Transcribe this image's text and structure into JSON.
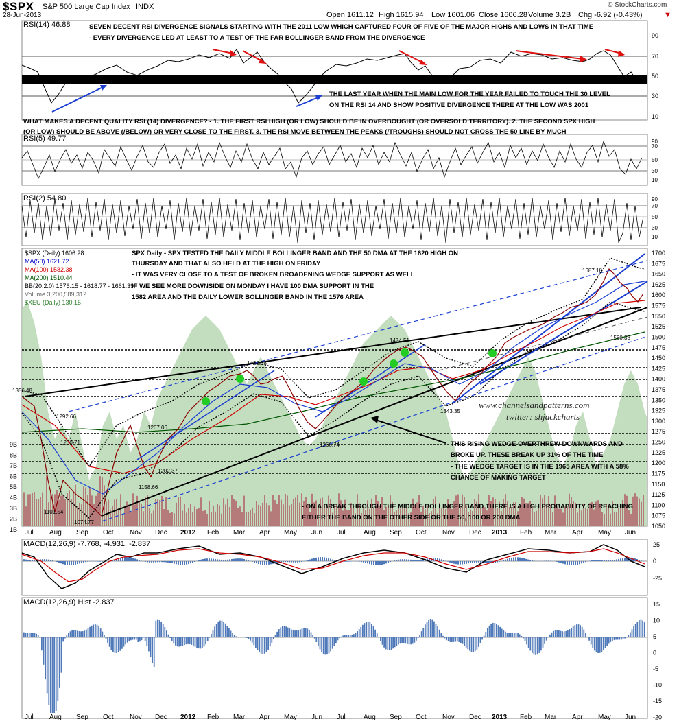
{
  "header": {
    "symbol": "$SPX",
    "name": "S&P 500 Large Cap Index",
    "exchange": "INDX",
    "date": "28-Jun-2013",
    "open": "Open 1611.12",
    "high": "High 1615.94",
    "low": "Low 1601.06",
    "close": "Close 1606.28",
    "volume": "Volume 3.2B",
    "change": "Chg -6.92 (-0.43%)",
    "change_arrow": "▼",
    "stockcharts": "© StockCharts.com",
    "colors": {
      "down": "#cc0000",
      "up": "#006600"
    }
  },
  "rsi14": {
    "label": "RSI(14) 46.88",
    "ticks": [
      "90",
      "70",
      "50",
      "30",
      "10"
    ],
    "annotation1": "SEVEN DECENT RSI DIVERGENCE SIGNALS STARTING WITH THE 2011 LOW WHICH CAPTURED FOUR OF FIVE OF THE MAJOR HIGHS AND LOWS IN THAT TIME",
    "annotation2": "- EVERY DIVERGENCE LED AT LEAST TO A TEST OF THE FAR BOLLINGER BAND FROM THE DIVERGENCE",
    "annotation3": "THE LAST YEAR WHEN THE MAIN LOW FOR THE YEAR FAILED TO TOUCH THE 30 LEVEL",
    "annotation4": "ON THE RSI 14 AND SHOW POSITIVE DIVERGENCE THERE AT THE LOW WAS 2001"
  },
  "quality_note": {
    "line1": "WHAT MAKES A DECENT QUALITY RSI (14) DIVERGENCE? - 1. THE FIRST RSI HIGH (OR LOW) SHOULD BE IN OVERBOUGHT (OR OVERSOLD TERRITORY). 2. THE SECOND SPX HIGH",
    "line2": "(OR LOW) SHOULD BE ABOVE (/BELOW) OR VERY CLOSE TO THE FIRST. 3. THE RSI MOVE BETWEEN THE PEAKS (/TROUGHS) SHOULD NOT CROSS THE 50 LINE BY MUCH"
  },
  "rsi5": {
    "label": "RSI(5) 49.77",
    "ticks": [
      "90",
      "70",
      "50",
      "30",
      "10"
    ]
  },
  "rsi2": {
    "label": "RSI(2) 54.80",
    "ticks": [
      "90",
      "70",
      "50",
      "30",
      "10"
    ]
  },
  "price": {
    "legend": [
      {
        "text": "$SPX (Daily) 1606.28",
        "color": "#000000"
      },
      {
        "text": "MA(50) 1621.72",
        "color": "#0000cc"
      },
      {
        "text": "MA(100) 1582.38",
        "color": "#cc0000"
      },
      {
        "text": "MA(200) 1510.44",
        "color": "#005500"
      },
      {
        "text": "BB(20,2.0) 1576.15 - 1618.77 - 1661.39",
        "color": "#000000"
      },
      {
        "text": "Volume 3,200,589,312",
        "color": "#666666"
      },
      {
        "text": "$XEU (Daily) 130.15",
        "color": "#2f7f2f"
      }
    ],
    "price_ticks": [
      "1700",
      "1675",
      "1650",
      "1625",
      "1600",
      "1575",
      "1550",
      "1525",
      "1500",
      "1475",
      "1450",
      "1425",
      "1400",
      "1375",
      "1350",
      "1325",
      "1300",
      "1275",
      "1250",
      "1225",
      "1200",
      "1175",
      "1150",
      "1125",
      "1100",
      "1075",
      "1050"
    ],
    "volume_ticks": [
      "9B",
      "8B",
      "7B",
      "6B",
      "5B",
      "4B",
      "3B",
      "2B",
      "1B"
    ],
    "note1": "SPX Daily - SPX TESTED THE DAILY MIDDLE BOLLINGER BAND AND THE 50 DMA AT THE 1620 HIGH ON",
    "note2": "THURSDAY AND THAT ALSO HELD AT THE HIGH ON FRIDAY",
    "note3": "- IT WAS VERY CLOSE TO A TEST OF BROKEN BROADENING WEDGE SUPPORT AS WELL",
    "note4": "IF WE SEE MORE DOWNSIDE ON MONDAY I HAVE 100 DMA SUPPORT IN THE",
    "note5": "1582 AREA AND THE DAILY LOWER BOLLINGER BAND IN THE 1576 AREA",
    "wedge1": "THIS RISING WEDGE OVERTHREW DOWNWARDS AND",
    "wedge2": "BROKE UP. THESE BREAK UP 31% OF THE TIME",
    "wedge3": "- THE WEDGE TARGET IS IN THE 1965 AREA WITH A 58%",
    "wedge4": "CHANCE OF MAKING TARGET",
    "band1": "- ON A BREAK THROUGH THE MIDDLE BOLLINGER BAND THERE IS A HIGH PROBABILITY OF REACHING",
    "band2": "EITHER THE BAND ON THE OTHER SIDE OR THE 50, 100 OR 200 DMA",
    "watermark1": "www.channelsandpatterns.com",
    "watermark2": "twitter: shjackcharts",
    "price_labels": [
      "1356.48",
      "1292.66",
      "1230.71",
      "1101.54",
      "1074.77",
      "1267.06",
      "1202.37",
      "1158.66",
      "1422.38",
      "1266.74",
      "1474.51",
      "1343.35",
      "1687.18",
      "1560.33"
    ]
  },
  "x_axis": {
    "labels": [
      "Jul",
      "Aug",
      "Sep",
      "Oct",
      "Nov",
      "Dec",
      "2012",
      "Feb",
      "Mar",
      "Apr",
      "May",
      "Jun",
      "Jul",
      "Aug",
      "Sep",
      "Oct",
      "Nov",
      "Dec",
      "2013",
      "Feb",
      "Mar",
      "Apr",
      "May",
      "Jun"
    ]
  },
  "macd": {
    "label": "MACD(12,26,9) -7.768, -4.931, -2.837",
    "ticks": [
      "25",
      "0",
      "-25"
    ]
  },
  "hist": {
    "label": "MACD(12,26,9) Hist -2.837",
    "ticks": [
      "15",
      "10",
      "5",
      "0",
      "-5",
      "-10",
      "-15",
      "-20"
    ]
  },
  "chart_data": {
    "type": "line",
    "title": "$SPX S&P 500 Large Cap Index INDX",
    "x": [
      "Jul 2011",
      "Aug 2011",
      "Oct 2011",
      "Nov 2011",
      "Dec 2011",
      "Feb 2012",
      "Apr 2012",
      "Jun 2012",
      "Sep 2012",
      "Nov 2012",
      "Jan 2013",
      "May 2013",
      "Jun 2013"
    ],
    "series": [
      {
        "name": "$SPX (Daily)",
        "values": [
          1356.48,
          1120,
          1074.77,
          1267.06,
          1202.37,
          1350,
          1422.38,
          1266.74,
          1474.51,
          1343.35,
          1470,
          1687.18,
          1606.28
        ]
      }
    ],
    "ylim": [
      1050,
      1700
    ],
    "price_labels": [
      {
        "x": "Jul 2011",
        "y": 1356.48
      },
      {
        "x": "Aug 2011",
        "y": 1101.54
      },
      {
        "x": "Oct 2011",
        "y": 1074.77
      },
      {
        "x": "Nov 2011",
        "y": 1292.66
      },
      {
        "x": "Dec 2011",
        "y": 1267.06
      },
      {
        "x": "Dec 2011",
        "y": 1202.37
      },
      {
        "x": "Nov 2011",
        "y": 1158.66
      },
      {
        "x": "Mar 2012",
        "y": 1422.38
      },
      {
        "x": "Jun 2012",
        "y": 1266.74
      },
      {
        "x": "Sep 2012",
        "y": 1474.51
      },
      {
        "x": "Nov 2012",
        "y": 1343.35
      },
      {
        "x": "May 2013",
        "y": 1687.18
      },
      {
        "x": "Jun 2013",
        "y": 1560.33
      }
    ]
  }
}
